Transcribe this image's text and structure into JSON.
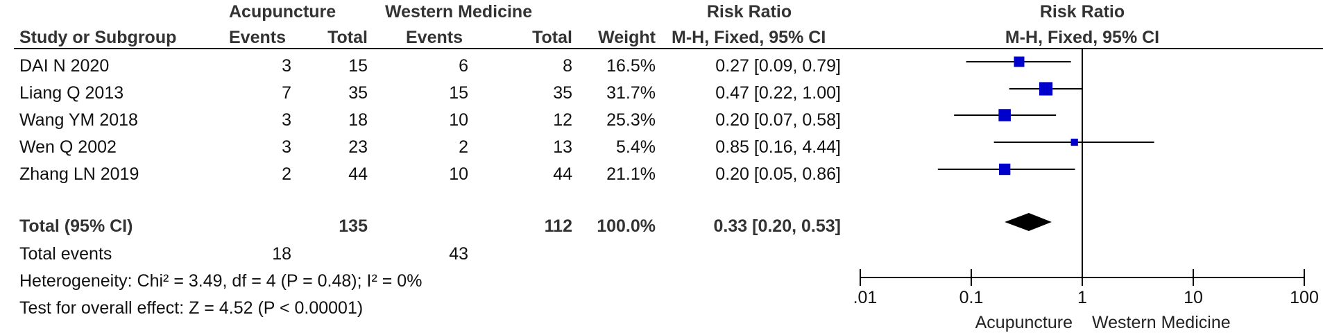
{
  "header": {
    "group1": "Acupuncture",
    "group2": "Western Medicine",
    "rr_table": "Risk Ratio",
    "rr_plot": "Risk Ratio",
    "col_study": "Study or Subgroup",
    "col_events1": "Events",
    "col_total1": "Total",
    "col_events2": "Events",
    "col_total2": "Total",
    "col_weight": "Weight",
    "col_method": "M-H, Fixed, 95% CI",
    "plot_method": "M-H, Fixed, 95% CI"
  },
  "studies": [
    {
      "name": "DAI N 2020",
      "e1": "3",
      "t1": "15",
      "e2": "6",
      "t2": "8",
      "weight": "16.5%",
      "ci": "0.27 [0.09, 0.79]"
    },
    {
      "name": "Liang Q 2013",
      "e1": "7",
      "t1": "35",
      "e2": "15",
      "t2": "35",
      "weight": "31.7%",
      "ci": "0.47 [0.22, 1.00]"
    },
    {
      "name": "Wang YM 2018",
      "e1": "3",
      "t1": "18",
      "e2": "10",
      "t2": "12",
      "weight": "25.3%",
      "ci": "0.20 [0.07, 0.58]"
    },
    {
      "name": "Wen Q 2002",
      "e1": "3",
      "t1": "23",
      "e2": "2",
      "t2": "13",
      "weight": "5.4%",
      "ci": "0.85 [0.16, 4.44]"
    },
    {
      "name": "Zhang LN 2019",
      "e1": "2",
      "t1": "44",
      "e2": "10",
      "t2": "44",
      "weight": "21.1%",
      "ci": "0.20 [0.05, 0.86]"
    }
  ],
  "total": {
    "label": "Total (95% CI)",
    "t1": "135",
    "t2": "112",
    "weight": "100.0%",
    "ci": "0.33 [0.20, 0.53]"
  },
  "total_events": {
    "label": "Total events",
    "e1": "18",
    "e2": "43"
  },
  "heterogeneity": "Heterogeneity: Chi² = 3.49, df = 4 (P = 0.48); I² = 0%",
  "overall_effect": "Test for overall effect: Z = 4.52 (P < 0.00001)",
  "favours_left": "Acupuncture",
  "favours_right": "Western Medicine",
  "colors": {
    "marker": "#0000cc",
    "diamond": "#000000",
    "line": "#000000"
  },
  "chart_data": {
    "type": "scatter",
    "scale": "log",
    "x_ticks": [
      "0.01",
      "0.1",
      "1",
      "10",
      "100"
    ],
    "x_tick_values": [
      0.01,
      0.1,
      1,
      10,
      100
    ],
    "null_line": 1,
    "points": [
      {
        "study": "DAI N 2020",
        "rr": 0.27,
        "lo": 0.09,
        "hi": 0.79,
        "weight": 16.5
      },
      {
        "study": "Liang Q 2013",
        "rr": 0.47,
        "lo": 0.22,
        "hi": 1.0,
        "weight": 31.7
      },
      {
        "study": "Wang YM 2018",
        "rr": 0.2,
        "lo": 0.07,
        "hi": 0.58,
        "weight": 25.3
      },
      {
        "study": "Wen Q 2002",
        "rr": 0.85,
        "lo": 0.16,
        "hi": 4.44,
        "weight": 5.4
      },
      {
        "study": "Zhang LN 2019",
        "rr": 0.2,
        "lo": 0.05,
        "hi": 0.86,
        "weight": 21.1
      }
    ],
    "pooled": {
      "rr": 0.33,
      "lo": 0.2,
      "hi": 0.53
    }
  }
}
